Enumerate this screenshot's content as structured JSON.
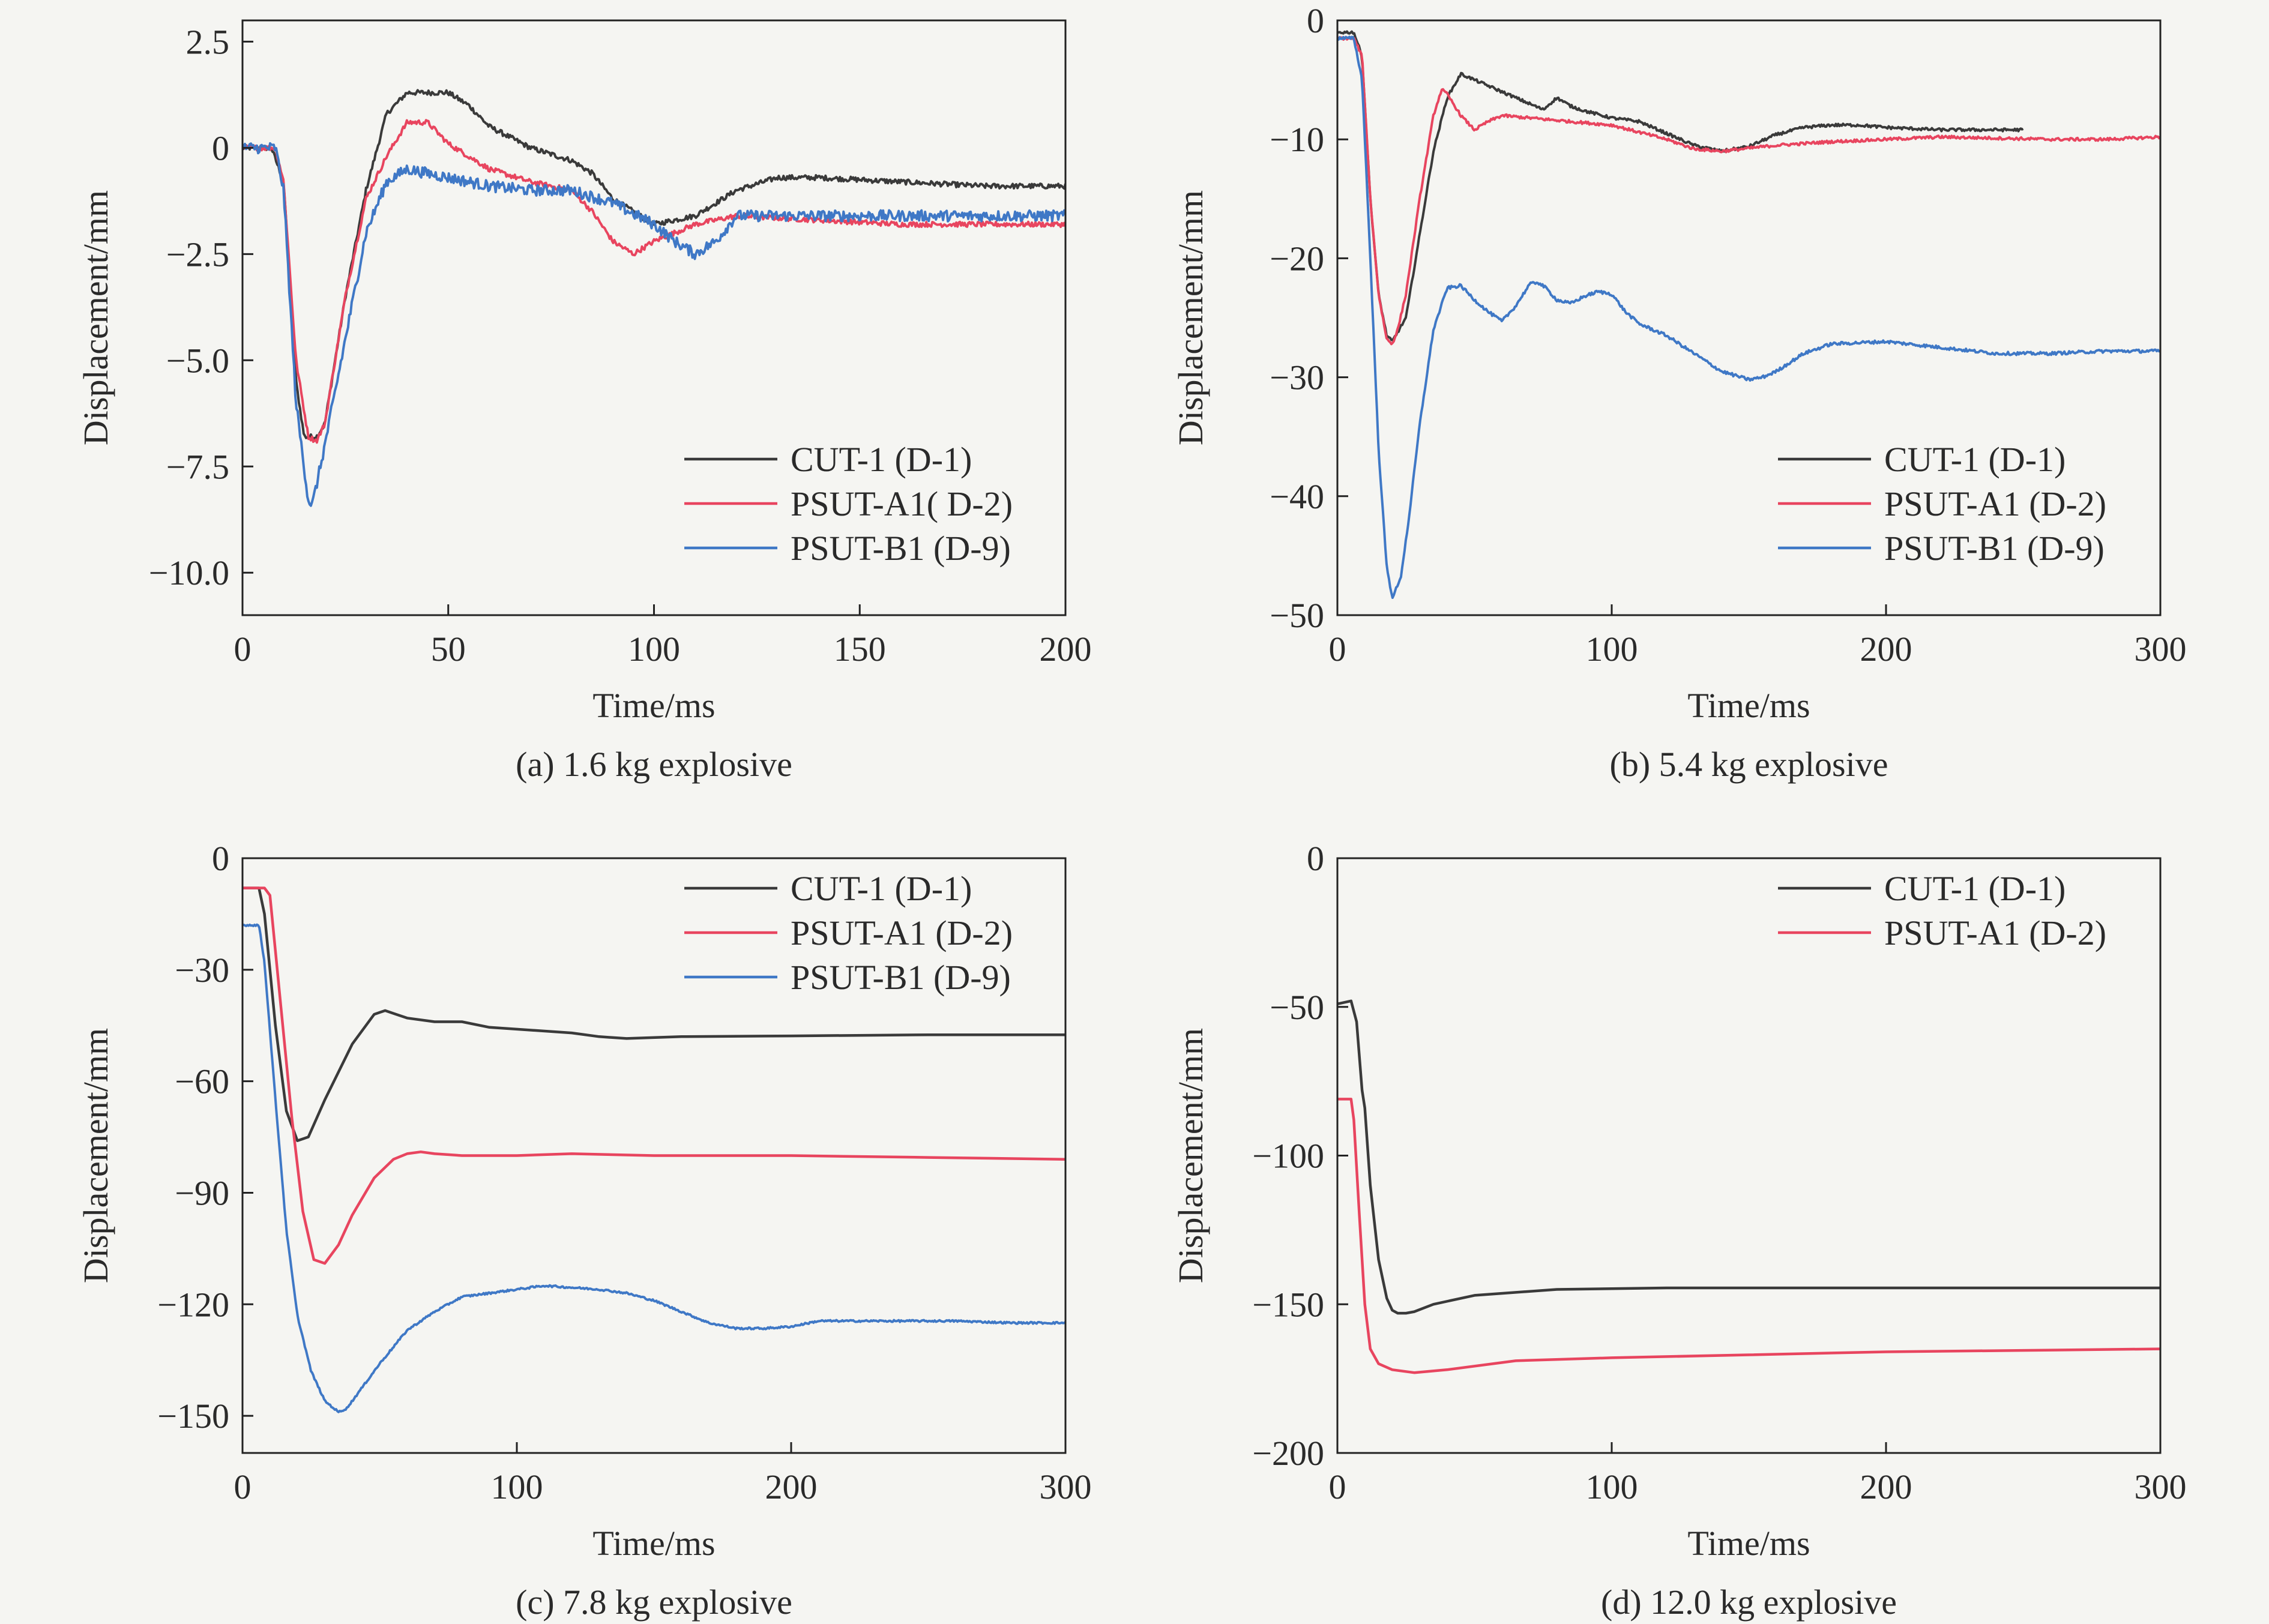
{
  "colors": {
    "black": "#3a3a3a",
    "red": "#e8455f",
    "blue": "#3f78c6",
    "axis": "#222222",
    "background": "#f5f5f2"
  },
  "chart_data": [
    {
      "type": "line",
      "caption": "(a) 1.6 kg explosive",
      "xlabel": "Time/ms",
      "ylabel": "Displacement/mm",
      "xlim": [
        0,
        200
      ],
      "ylim": [
        -11,
        3
      ],
      "xticks": [
        0,
        50,
        100,
        150,
        200
      ],
      "xtick_labels": [
        "0",
        "50",
        "100",
        "150",
        "200"
      ],
      "yticks": [
        2.5,
        0,
        -2.5,
        -5,
        -7.5,
        -10
      ],
      "ytick_labels": [
        "2.5",
        "0",
        "−2.5",
        "−5.0",
        "−7.5",
        "−10.0"
      ],
      "legend_position": "bottom-right",
      "series": [
        {
          "name": "CUT-1 (D-1)",
          "color": "black",
          "noise": 0.06,
          "x": [
            0,
            7,
            10,
            13,
            15,
            18,
            20,
            25,
            30,
            35,
            40,
            50,
            55,
            60,
            70,
            80,
            85,
            90,
            100,
            110,
            120,
            130,
            140,
            160,
            180,
            200
          ],
          "y": [
            0,
            0,
            -0.8,
            -5.5,
            -6.8,
            -6.8,
            -6.5,
            -3.5,
            -1,
            0.8,
            1.3,
            1.3,
            1.0,
            0.5,
            0,
            -0.3,
            -0.6,
            -1.2,
            -1.8,
            -1.6,
            -1.0,
            -0.7,
            -0.7,
            -0.8,
            -0.9,
            -0.9
          ]
        },
        {
          "name": "PSUT-A1( D-2)",
          "color": "red",
          "noise": 0.06,
          "x": [
            0,
            8,
            10,
            13,
            16,
            18,
            20,
            25,
            30,
            35,
            40,
            45,
            50,
            60,
            70,
            80,
            85,
            90,
            95,
            100,
            110,
            120,
            140,
            160,
            180,
            200
          ],
          "y": [
            0,
            0,
            -0.8,
            -5,
            -6.8,
            -6.9,
            -6.5,
            -3.5,
            -1.2,
            -0.2,
            0.6,
            0.6,
            0.1,
            -0.5,
            -0.8,
            -1.0,
            -1.5,
            -2.2,
            -2.5,
            -2.2,
            -1.8,
            -1.6,
            -1.7,
            -1.8,
            -1.8,
            -1.8
          ]
        },
        {
          "name": "PSUT-B1 (D-9)",
          "color": "blue",
          "noise": 0.13,
          "x": [
            0,
            8,
            10,
            13,
            16,
            17,
            20,
            25,
            30,
            35,
            40,
            50,
            60,
            70,
            80,
            90,
            100,
            105,
            110,
            115,
            120,
            140,
            160,
            200
          ],
          "y": [
            0,
            0,
            -1,
            -6,
            -8.3,
            -8.4,
            -7,
            -4.5,
            -2,
            -0.8,
            -0.5,
            -0.7,
            -0.9,
            -1.0,
            -1.0,
            -1.3,
            -1.8,
            -2.2,
            -2.5,
            -2.2,
            -1.6,
            -1.6,
            -1.6,
            -1.6
          ]
        }
      ]
    },
    {
      "type": "line",
      "caption": "(b) 5.4 kg explosive",
      "xlabel": "Time/ms",
      "ylabel": "Displacement/mm",
      "xlim": [
        0,
        300
      ],
      "ylim": [
        -50,
        0
      ],
      "xticks": [
        0,
        100,
        200,
        300
      ],
      "xtick_labels": [
        "0",
        "100",
        "200",
        "300"
      ],
      "yticks": [
        0,
        -10,
        -20,
        -30,
        -40,
        -50
      ],
      "ytick_labels": [
        "0",
        "−10",
        "−20",
        "−30",
        "−40",
        "−50"
      ],
      "legend_position": "bottom-right",
      "series": [
        {
          "name": "CUT-1 (D-1)",
          "color": "black",
          "noise": 0.12,
          "x": [
            0,
            6,
            9,
            12,
            15,
            18,
            20,
            25,
            30,
            35,
            40,
            45,
            50,
            60,
            70,
            75,
            80,
            85,
            90,
            100,
            110,
            120,
            130,
            140,
            150,
            160,
            170,
            180,
            190,
            200,
            220,
            240,
            250
          ],
          "y": [
            -1,
            -1,
            -3,
            -15,
            -23,
            -26.5,
            -27,
            -25,
            -18,
            -11,
            -6.5,
            -4.5,
            -5,
            -6,
            -7,
            -7.5,
            -6.5,
            -7.2,
            -7.6,
            -8.2,
            -8.5,
            -9.5,
            -10.5,
            -11,
            -10.6,
            -9.6,
            -9,
            -8.8,
            -8.8,
            -9,
            -9.2,
            -9.2,
            -9.2
          ]
        },
        {
          "name": "PSUT-A1 (D-2)",
          "color": "red",
          "noise": 0.12,
          "x": [
            0,
            6,
            9,
            12,
            15,
            18,
            20,
            22,
            25,
            30,
            35,
            38,
            40,
            45,
            50,
            55,
            60,
            70,
            80,
            100,
            120,
            130,
            140,
            160,
            180,
            200,
            220,
            240,
            260,
            280,
            300
          ],
          "y": [
            -1.5,
            -1.5,
            -3,
            -15,
            -23,
            -26.8,
            -27.2,
            -26,
            -23,
            -15,
            -8,
            -5.8,
            -6.2,
            -8,
            -9.2,
            -8.5,
            -8,
            -8.2,
            -8.4,
            -8.8,
            -10,
            -10.8,
            -11,
            -10.5,
            -10.2,
            -10,
            -9.8,
            -9.9,
            -10,
            -10,
            -9.8
          ]
        },
        {
          "name": "PSUT-B1 (D-9)",
          "color": "blue",
          "noise": 0.13,
          "x": [
            0,
            6,
            9,
            12,
            15,
            18,
            20,
            23,
            26,
            30,
            35,
            40,
            45,
            50,
            55,
            60,
            65,
            70,
            73,
            76,
            80,
            85,
            90,
            95,
            100,
            105,
            110,
            120,
            130,
            140,
            150,
            155,
            160,
            170,
            180,
            200,
            220,
            240,
            260,
            280,
            300
          ],
          "y": [
            -1.5,
            -1.5,
            -5,
            -20,
            -36,
            -46,
            -48.5,
            -47,
            -42,
            -34,
            -26,
            -22.5,
            -22.3,
            -23.5,
            -24.5,
            -25.3,
            -24,
            -22.2,
            -22,
            -22.5,
            -23.5,
            -23.8,
            -23.2,
            -22.8,
            -23,
            -24.5,
            -25.5,
            -26.5,
            -28,
            -29.5,
            -30.2,
            -30,
            -29.5,
            -28,
            -27.2,
            -27,
            -27.5,
            -28,
            -28,
            -27.8,
            -27.8
          ]
        }
      ]
    },
    {
      "type": "line",
      "caption": "(c) 7.8 kg explosive",
      "xlabel": "Time/ms",
      "ylabel": "Displacement/mm",
      "xlim": [
        0,
        300
      ],
      "ylim": [
        -160,
        0
      ],
      "xticks": [
        0,
        100,
        200,
        300
      ],
      "xtick_labels": [
        "0",
        "100",
        "200",
        "300"
      ],
      "yticks": [
        0,
        -30,
        -60,
        -90,
        -120,
        -150
      ],
      "ytick_labels": [
        "0",
        "−30",
        "−60",
        "−90",
        "−120",
        "−150"
      ],
      "legend_position": "top-right",
      "series": [
        {
          "name": "CUT-1 (D-1)",
          "color": "black",
          "noise": 0,
          "x": [
            0,
            6,
            8,
            12,
            16,
            20,
            24,
            30,
            40,
            48,
            52,
            56,
            60,
            70,
            80,
            90,
            100,
            120,
            130,
            140,
            160,
            200,
            250,
            300
          ],
          "y": [
            -8,
            -8,
            -15,
            -45,
            -68,
            -76,
            -75,
            -65,
            -50,
            -42,
            -41,
            -42,
            -43,
            -44,
            -44,
            -45.5,
            -46,
            -47,
            -48,
            -48.5,
            -48,
            -47.8,
            -47.5,
            -47.5
          ]
        },
        {
          "name": "PSUT-A1 (D-2)",
          "color": "red",
          "noise": 0,
          "x": [
            0,
            8,
            10,
            14,
            18,
            22,
            26,
            30,
            35,
            40,
            48,
            55,
            60,
            65,
            70,
            80,
            100,
            120,
            150,
            200,
            250,
            300
          ],
          "y": [
            -8,
            -8,
            -10,
            -40,
            -70,
            -95,
            -108,
            -109,
            -104,
            -96,
            -86,
            -81,
            -79.5,
            -79,
            -79.5,
            -80,
            -80,
            -79.5,
            -80,
            -80,
            -80.5,
            -81
          ]
        },
        {
          "name": "PSUT-B1 (D-9)",
          "color": "blue",
          "noise": 0.25,
          "x": [
            0,
            6,
            8,
            12,
            16,
            20,
            25,
            30,
            35,
            38,
            42,
            50,
            60,
            70,
            80,
            90,
            100,
            110,
            120,
            130,
            140,
            150,
            160,
            170,
            180,
            190,
            200,
            210,
            220,
            240,
            260,
            280,
            300
          ],
          "y": [
            -18,
            -18,
            -28,
            -65,
            -100,
            -123,
            -138,
            -146,
            -149,
            -148,
            -144,
            -136,
            -127,
            -122,
            -118,
            -117,
            -116,
            -115,
            -115.5,
            -116,
            -117,
            -119,
            -122,
            -125,
            -126.5,
            -126.5,
            -126,
            -124.5,
            -124.5,
            -124.5,
            -124.5,
            -125,
            -125
          ]
        }
      ]
    },
    {
      "type": "line",
      "caption": "(d) 12.0 kg explosive",
      "xlabel": "Time/ms",
      "ylabel": "Displacement/mm",
      "xlim": [
        0,
        300
      ],
      "ylim": [
        -200,
        0
      ],
      "xticks": [
        0,
        100,
        200,
        300
      ],
      "xtick_labels": [
        "0",
        "100",
        "200",
        "300"
      ],
      "yticks": [
        0,
        -50,
        -100,
        -150,
        -200
      ],
      "ytick_labels": [
        "0",
        "−50",
        "−100",
        "−150",
        "−200"
      ],
      "legend_position": "top-right",
      "series": [
        {
          "name": "CUT-1 (D-1)",
          "color": "black",
          "noise": 0,
          "x": [
            0,
            5,
            7,
            9,
            10,
            12,
            15,
            18,
            20,
            22,
            25,
            28,
            35,
            50,
            80,
            120,
            200,
            300
          ],
          "y": [
            -49,
            -48,
            -55,
            -78,
            -84,
            -110,
            -135,
            -148,
            -152,
            -153,
            -153,
            -152.5,
            -150,
            -147,
            -145,
            -144.5,
            -144.5,
            -144.5
          ]
        },
        {
          "name": "PSUT-A1 (D-2)",
          "color": "red",
          "noise": 0,
          "x": [
            0,
            5,
            6,
            8,
            10,
            12,
            15,
            20,
            28,
            40,
            65,
            100,
            150,
            200,
            250,
            300
          ],
          "y": [
            -81,
            -81,
            -88,
            -120,
            -150,
            -165,
            -170,
            -172,
            -173,
            -172,
            -169,
            -168,
            -167,
            -166,
            -165.5,
            -165
          ]
        }
      ]
    }
  ]
}
